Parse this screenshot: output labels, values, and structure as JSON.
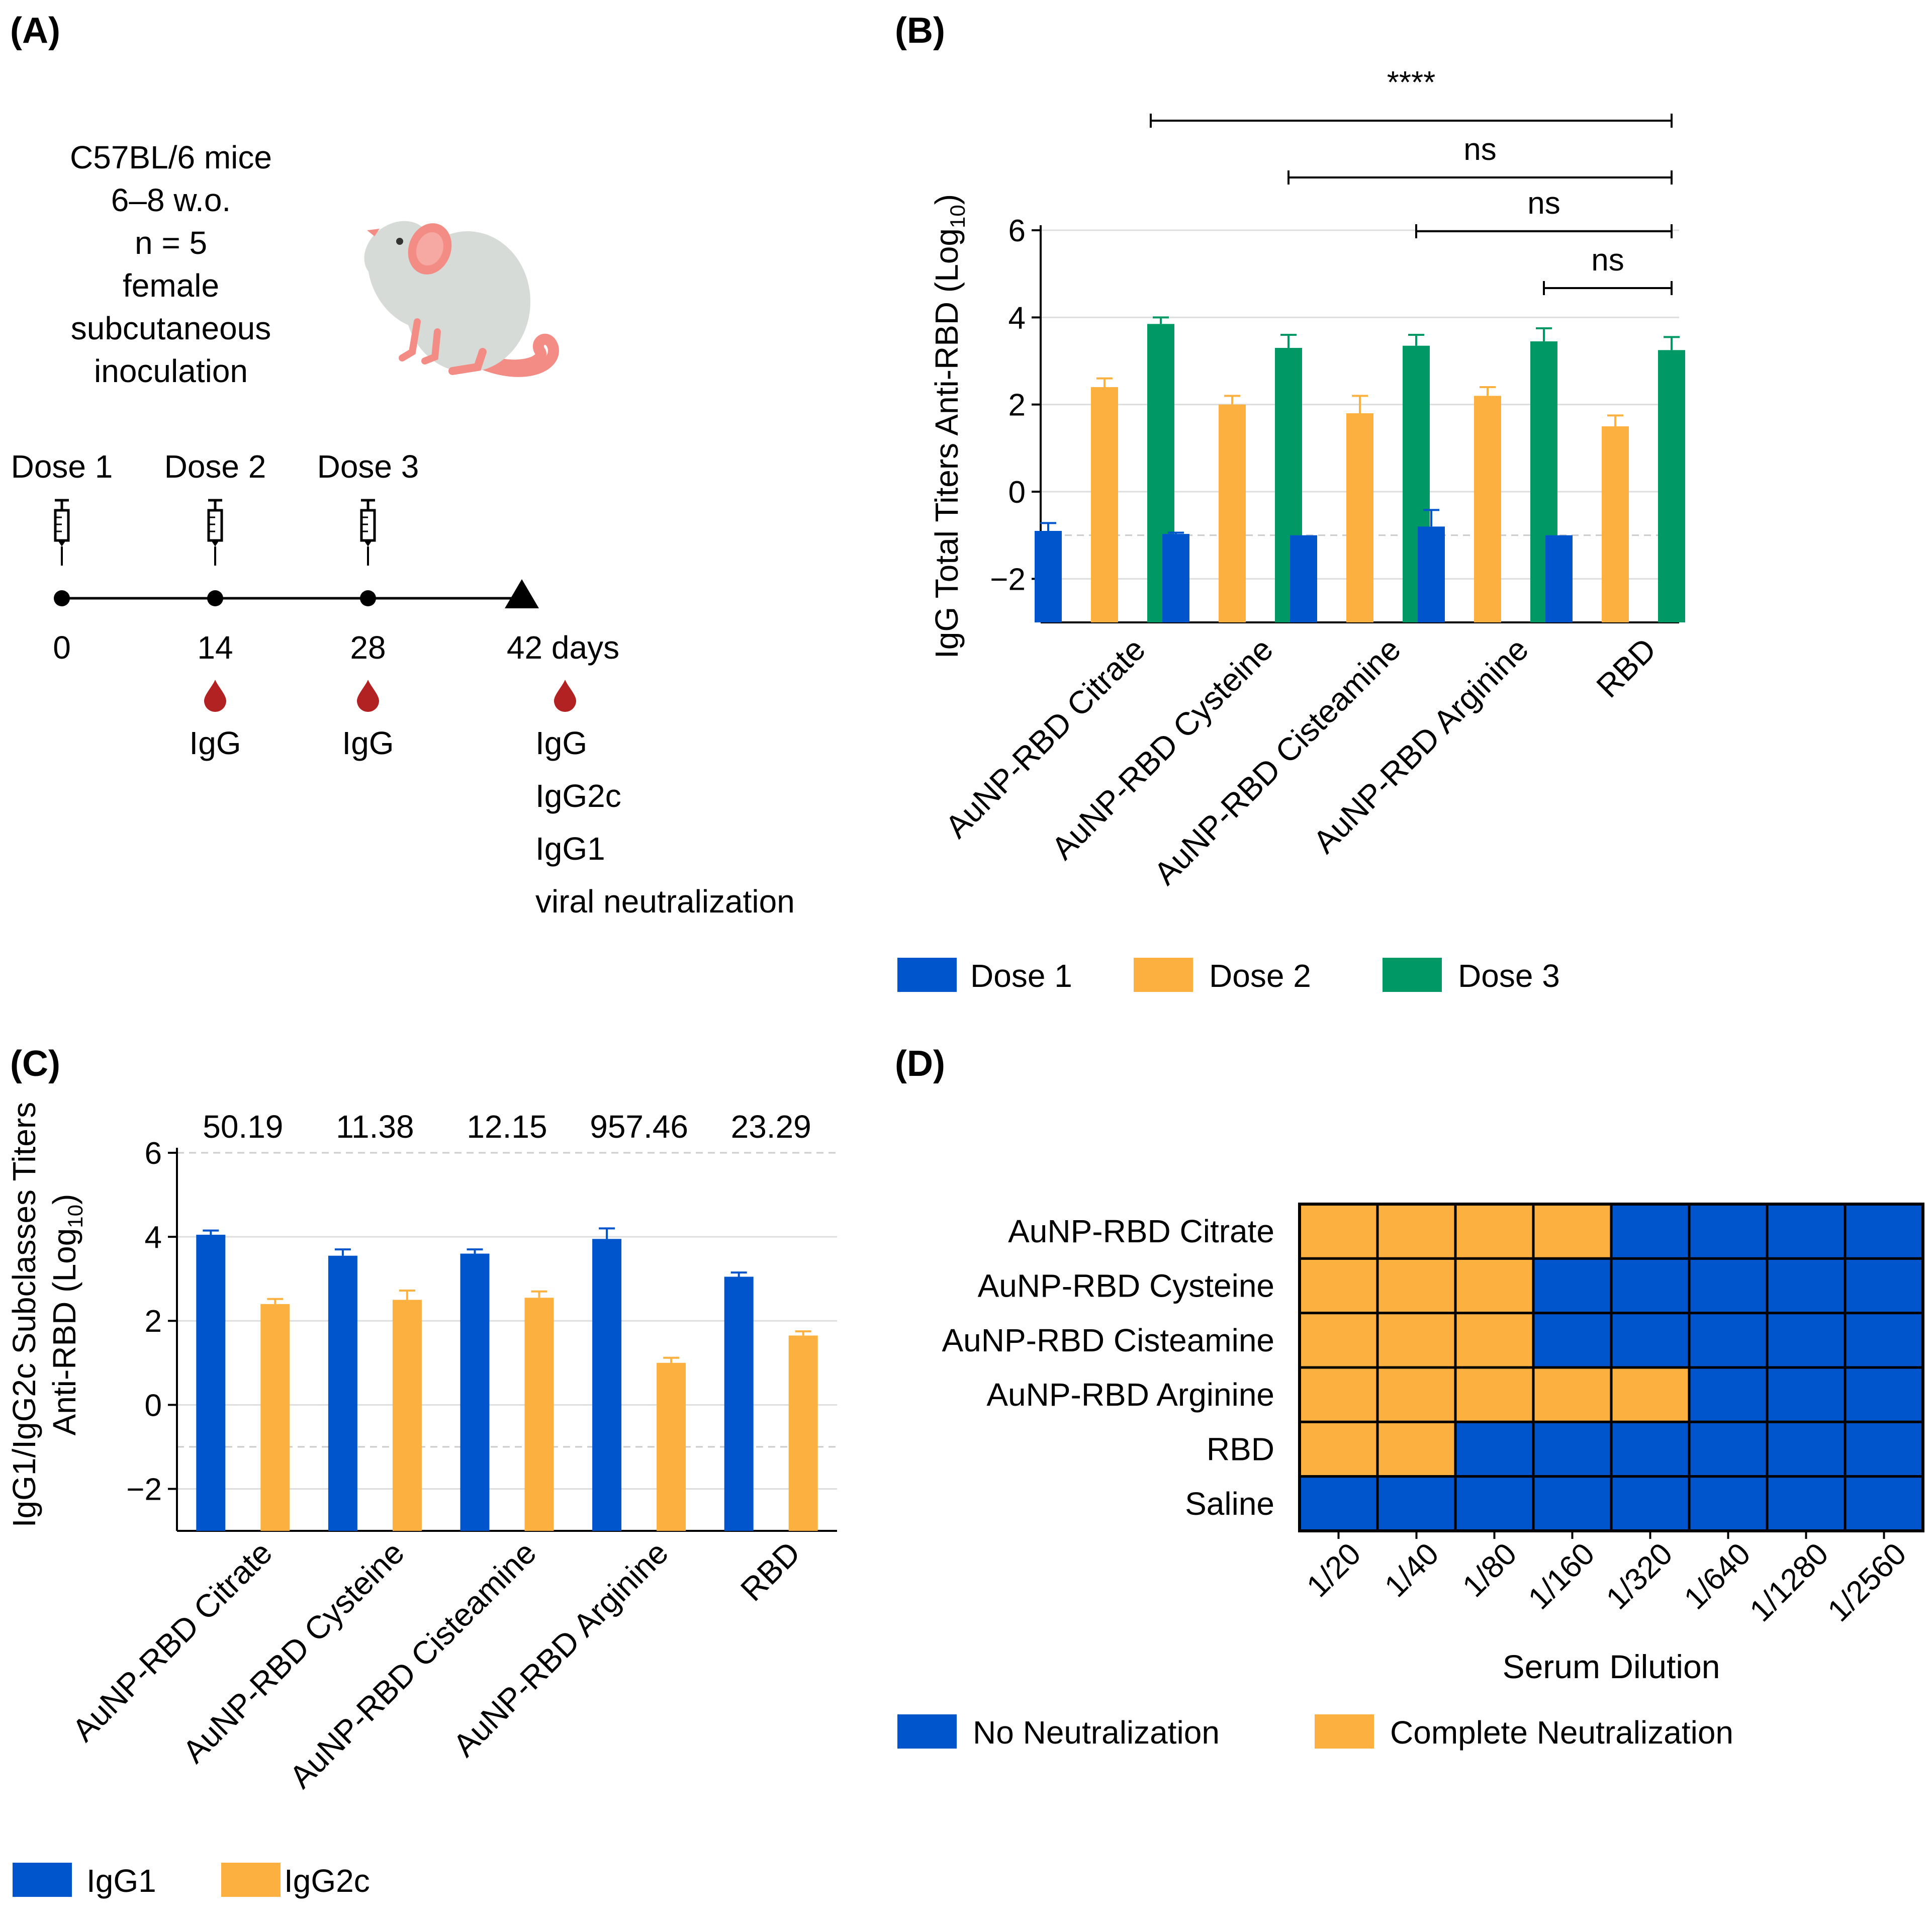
{
  "colors": {
    "blue": "#0055CC",
    "orange": "#FBB040",
    "green": "#009966",
    "grid": "#dddddd",
    "dash": "#cccccc",
    "blood": "#B22222",
    "mouse_body": "#D6DBD8",
    "mouse_pink": "#F28C84"
  },
  "panelA": {
    "label": "(A)",
    "mouse_info": [
      "C57BL/6 mice",
      "6–8 w.o.",
      "n = 5",
      "female",
      "subcutaneous",
      "inoculation"
    ],
    "doses": [
      "Dose 1",
      "Dose 2",
      "Dose 3"
    ],
    "days": [
      "0",
      "14",
      "28",
      "42 days"
    ],
    "samples": {
      "day14": [
        "IgG"
      ],
      "day28": [
        "IgG"
      ],
      "day42": [
        "IgG",
        "IgG2c",
        "IgG1",
        "viral neutralization"
      ]
    }
  },
  "chart_data": [
    {
      "panel": "(B)",
      "type": "bar",
      "ylabel": "IgG Total Titers Anti-RBD (Log",
      "ylabel_sub": "10",
      "ylabel_end": ")",
      "ylim": [
        -3,
        6
      ],
      "yticks": [
        -2,
        0,
        2,
        4,
        6
      ],
      "yticklabels": [
        "−2",
        "0",
        "2",
        "4",
        "6"
      ],
      "dashed_line": -1,
      "categories": [
        "AuNP-RBD Citrate",
        "AuNP-RBD Cysteine",
        "AuNP-RBD Cisteamine",
        "AuNP-RBD Arginine",
        "RBD"
      ],
      "series": [
        {
          "name": "Dose 1",
          "values": [
            -0.9,
            -0.97,
            -1.0,
            -0.8,
            -1.0
          ],
          "errors": [
            0.18,
            0.03,
            0.0,
            0.38,
            0.0
          ]
        },
        {
          "name": "Dose 2",
          "values": [
            2.4,
            2.0,
            1.8,
            2.2,
            1.5
          ],
          "errors": [
            0.2,
            0.2,
            0.4,
            0.2,
            0.25
          ]
        },
        {
          "name": "Dose 3",
          "values": [
            3.85,
            3.3,
            3.35,
            3.45,
            3.25
          ],
          "errors": [
            0.15,
            0.3,
            0.25,
            0.3,
            0.3
          ]
        }
      ],
      "significance": [
        {
          "label": "****",
          "from": 0,
          "to": 4
        },
        {
          "label": "ns",
          "from": 1,
          "to": 4
        },
        {
          "label": "ns",
          "from": 2,
          "to": 4
        },
        {
          "label": "ns",
          "from": 3,
          "to": 4
        }
      ],
      "legend": [
        "Dose 1",
        "Dose 2",
        "Dose 3"
      ]
    },
    {
      "panel": "(C)",
      "type": "bar",
      "ylabel_line1": "IgG1/IgG2c Subclasses Titers",
      "ylabel_line2": "Anti-RBD (Log",
      "ylabel_sub": "10",
      "ylabel_end": ")",
      "ylim": [
        -3,
        6
      ],
      "yticks": [
        -2,
        0,
        2,
        4,
        6
      ],
      "yticklabels": [
        "−2",
        "0",
        "2",
        "4",
        "6"
      ],
      "dashed_lines": [
        -1,
        6
      ],
      "categories": [
        "AuNP-RBD Citrate",
        "AuNP-RBD Cysteine",
        "AuNP-RBD Cisteamine",
        "AuNP-RBD Arginine",
        "RBD"
      ],
      "ratios": [
        "50.19",
        "11.38",
        "12.15",
        "957.46",
        "23.29"
      ],
      "series": [
        {
          "name": "IgG1",
          "values": [
            4.05,
            3.55,
            3.6,
            3.95,
            3.05
          ],
          "errors": [
            0.1,
            0.15,
            0.1,
            0.25,
            0.1
          ]
        },
        {
          "name": "IgG2c",
          "values": [
            2.4,
            2.5,
            2.55,
            1.0,
            1.65
          ],
          "errors": [
            0.12,
            0.22,
            0.15,
            0.12,
            0.1
          ]
        }
      ],
      "legend": [
        "IgG1",
        "IgG2c"
      ]
    },
    {
      "panel": "(D)",
      "type": "heatmap",
      "rows": [
        "AuNP-RBD Citrate",
        "AuNP-RBD Cysteine",
        "AuNP-RBD Cisteamine",
        "AuNP-RBD Arginine",
        "RBD",
        "Saline"
      ],
      "columns": [
        "1/20",
        "1/40",
        "1/80",
        "1/160",
        "1/320",
        "1/640",
        "1/1280",
        "1/2560"
      ],
      "neutralized_columns_count": [
        4,
        3,
        3,
        5,
        2,
        0
      ],
      "xlabel": "Serum Dilution",
      "legend": [
        "No Neutralization",
        "Complete Neutralization"
      ]
    }
  ]
}
